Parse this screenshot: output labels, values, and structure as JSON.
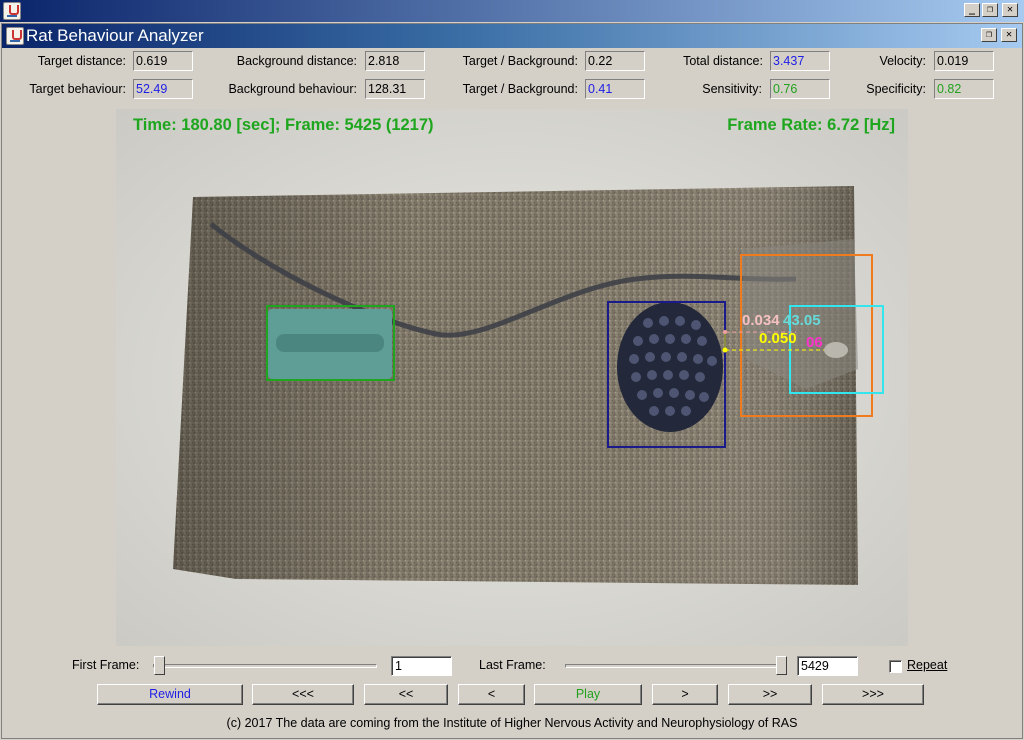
{
  "window": {
    "title": "Rat Behaviour Analyzer",
    "buttons": {
      "minimize": "_",
      "restore": "❐",
      "close": "✕"
    },
    "inner_buttons": {
      "restore": "❐",
      "close": "✕"
    }
  },
  "stats": {
    "target_distance": {
      "label": "Target distance:",
      "value": "0.619",
      "color": "#000000"
    },
    "background_distance": {
      "label": "Background distance:",
      "value": "2.818",
      "color": "#000000"
    },
    "target_background_1": {
      "label": "Target / Background:",
      "value": "0.22",
      "color": "#000000"
    },
    "total_distance": {
      "label": "Total distance:",
      "value": "3.437",
      "color": "#1e1ee6"
    },
    "velocity": {
      "label": "Velocity:",
      "value": "0.019",
      "color": "#000000"
    },
    "target_behaviour": {
      "label": "Target behaviour:",
      "value": "52.49",
      "color": "#1e1ee6"
    },
    "background_behaviour": {
      "label": "Background behaviour:",
      "value": "128.31",
      "color": "#000000"
    },
    "target_background_2": {
      "label": "Target / Background:",
      "value": "0.41",
      "color": "#1e1ee6"
    },
    "sensitivity": {
      "label": "Sensitivity:",
      "value": "0.76",
      "color": "#22a11e"
    },
    "specificity": {
      "label": "Specificity:",
      "value": "0.82",
      "color": "#22a11e"
    }
  },
  "video": {
    "time_text": "Time: 180.80 [sec]; Frame: 5425 (1217)",
    "frame_rate_text": "Frame Rate: 6.72 [Hz]",
    "measure_1": "0.034",
    "measure_2": "43.05",
    "measure_3": "0.050",
    "measure_4": "06",
    "colors": {
      "green_box": "#1fa61f",
      "navy_box": "#1a1a8a",
      "orange_box": "#f07a1e",
      "cyan_box": "#33e6ee",
      "overlay_green": "#1fa61f"
    }
  },
  "controls": {
    "first_frame_label": "First Frame:",
    "first_frame_value": "1",
    "last_frame_label": "Last Frame:",
    "last_frame_value": "5429",
    "repeat_label": "Repeat",
    "repeat_checked": false
  },
  "buttons": {
    "rewind": "Rewind",
    "fast_back": "<<<",
    "back": "<<",
    "step_back": "<",
    "play": "Play",
    "step_forward": ">",
    "forward": ">>",
    "fast_forward": ">>>"
  },
  "footer": "(c) 2017 The data are coming from the Institute of Higher Nervous Activity and Neurophysiology of RAS"
}
